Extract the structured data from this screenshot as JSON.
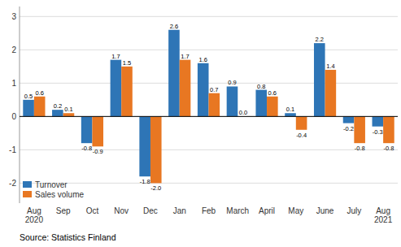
{
  "chart_data": {
    "type": "bar",
    "categories": [
      "Aug\n2020",
      "Sep",
      "Oct",
      "Nov",
      "Dec",
      "Jan",
      "Feb",
      "March",
      "April",
      "May",
      "June",
      "July",
      "Aug\n2021"
    ],
    "series": [
      {
        "name": "Turnover",
        "color": "#2E75B6",
        "values": [
          0.5,
          0.2,
          -0.8,
          1.7,
          -1.8,
          2.6,
          1.6,
          0.9,
          0.8,
          0.1,
          2.2,
          -0.2,
          -0.3
        ]
      },
      {
        "name": "Sales volume",
        "color": "#E87722",
        "values": [
          0.6,
          0.1,
          -0.9,
          1.5,
          -2.0,
          1.7,
          0.7,
          0.0,
          0.6,
          -0.4,
          1.4,
          -0.8,
          -0.8
        ]
      }
    ],
    "ylim": [
      -2.6,
      3.3
    ],
    "yticks": [
      -2,
      -1,
      0,
      1,
      2,
      3
    ],
    "grid": true,
    "legend": "lower left",
    "data_labels": true,
    "annotations": [
      "Source: Statistics Finland"
    ]
  }
}
